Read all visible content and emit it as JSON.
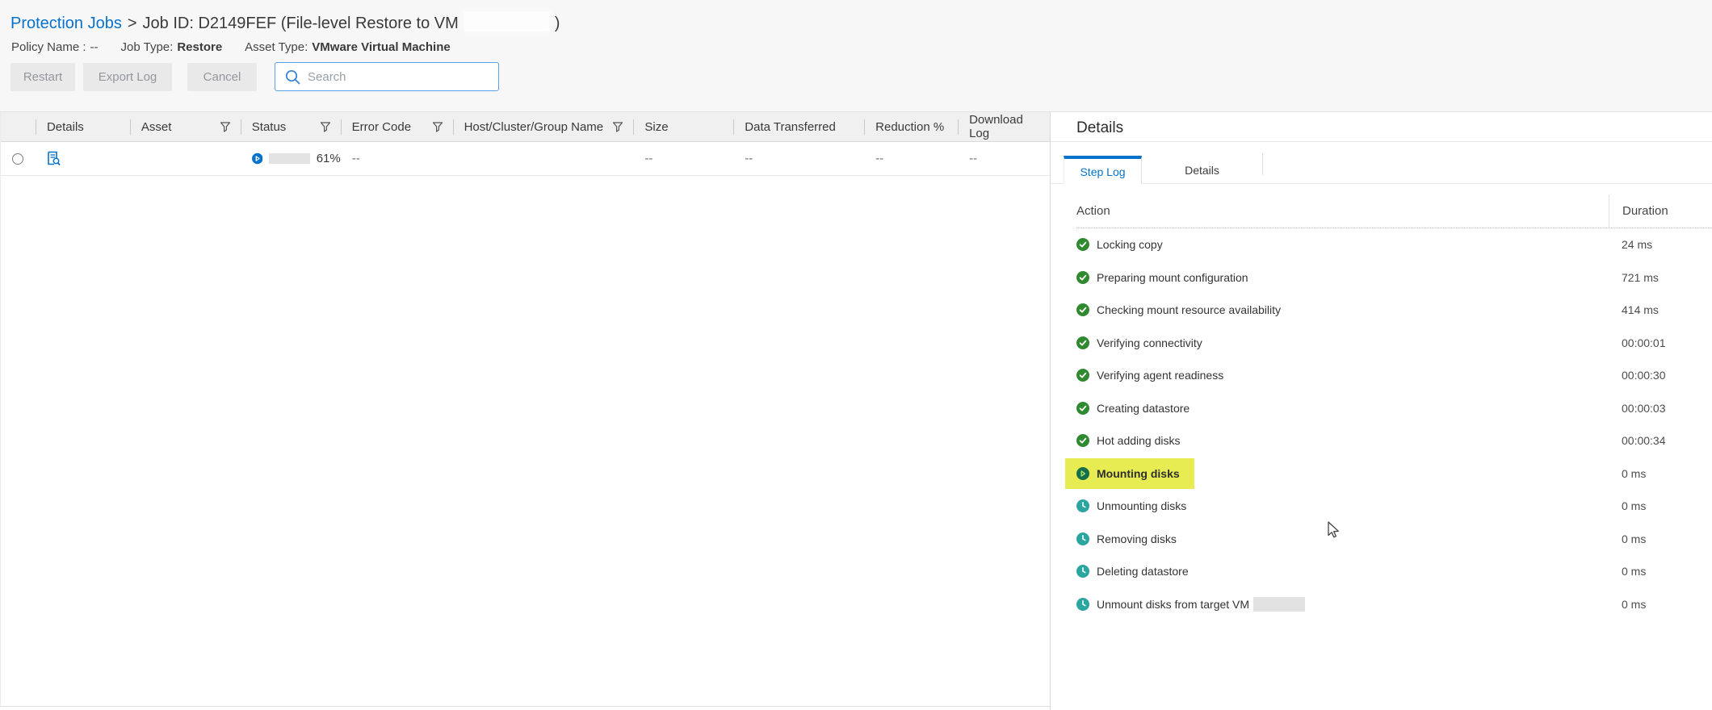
{
  "colors": {
    "accent_blue": "#0672cb",
    "progress_fill": "#1e7ca6",
    "success_green": "#2f8a2f",
    "running_green": "#156f4b",
    "pending_teal": "#2aa5a0",
    "highlight_yellow": "#e6ec52"
  },
  "breadcrumb": {
    "link": "Protection Jobs",
    "separator": ">",
    "title": "Job ID: D2149FEF (File-level Restore to VM",
    "title_close": ")"
  },
  "meta": {
    "policy_label": "Policy Name :",
    "policy_value": "--",
    "job_type_label": "Job Type:",
    "job_type_value": "Restore",
    "asset_type_label": "Asset Type:",
    "asset_type_value": "VMware Virtual Machine"
  },
  "toolbar": {
    "restart_label": "Restart",
    "export_log_label": "Export Log",
    "cancel_label": "Cancel",
    "search_placeholder": "Search"
  },
  "table": {
    "columns": [
      {
        "label": "",
        "filter": false
      },
      {
        "label": "Details",
        "filter": false
      },
      {
        "label": "Asset",
        "filter": true
      },
      {
        "label": "Status",
        "filter": true
      },
      {
        "label": "Error Code",
        "filter": true
      },
      {
        "label": "Host/Cluster/Group Name",
        "filter": true
      },
      {
        "label": "Size",
        "filter": false
      },
      {
        "label": "Data Transferred",
        "filter": false
      },
      {
        "label": "Reduction %",
        "filter": false
      },
      {
        "label": "Download Log",
        "filter": false
      }
    ],
    "row": {
      "progress_percent": 61,
      "progress_label": "61%",
      "asset": "",
      "error_code": "--",
      "host_cluster_group": "",
      "size": "--",
      "data_transferred": "--",
      "reduction": "--",
      "download_log": "--"
    }
  },
  "panel": {
    "title": "Details",
    "tabs": [
      {
        "label": "Step Log",
        "active": true
      },
      {
        "label": "Details",
        "active": false
      }
    ],
    "log": {
      "action_header": "Action",
      "duration_header": "Duration",
      "steps": [
        {
          "label": "Locking copy",
          "duration": "24 ms",
          "state": "done",
          "highlighted": false
        },
        {
          "label": "Preparing mount configuration",
          "duration": "721 ms",
          "state": "done",
          "highlighted": false
        },
        {
          "label": "Checking mount resource availability",
          "duration": "414 ms",
          "state": "done",
          "highlighted": false
        },
        {
          "label": "Verifying connectivity",
          "duration": "00:00:01",
          "state": "done",
          "highlighted": false
        },
        {
          "label": "Verifying agent readiness",
          "duration": "00:00:30",
          "state": "done",
          "highlighted": false
        },
        {
          "label": "Creating datastore",
          "duration": "00:00:03",
          "state": "done",
          "highlighted": false
        },
        {
          "label": "Hot adding disks",
          "duration": "00:00:34",
          "state": "done",
          "highlighted": false
        },
        {
          "label": "Mounting disks",
          "duration": "0 ms",
          "state": "running",
          "highlighted": true
        },
        {
          "label": "Unmounting disks",
          "duration": "0 ms",
          "state": "pending",
          "highlighted": false
        },
        {
          "label": "Removing disks",
          "duration": "0 ms",
          "state": "pending",
          "highlighted": false
        },
        {
          "label": "Deleting datastore",
          "duration": "0 ms",
          "state": "pending",
          "highlighted": false
        },
        {
          "label": "Unmount disks from target VM",
          "duration": "0 ms",
          "state": "pending",
          "highlighted": false,
          "redacted_suffix": true
        }
      ]
    }
  }
}
